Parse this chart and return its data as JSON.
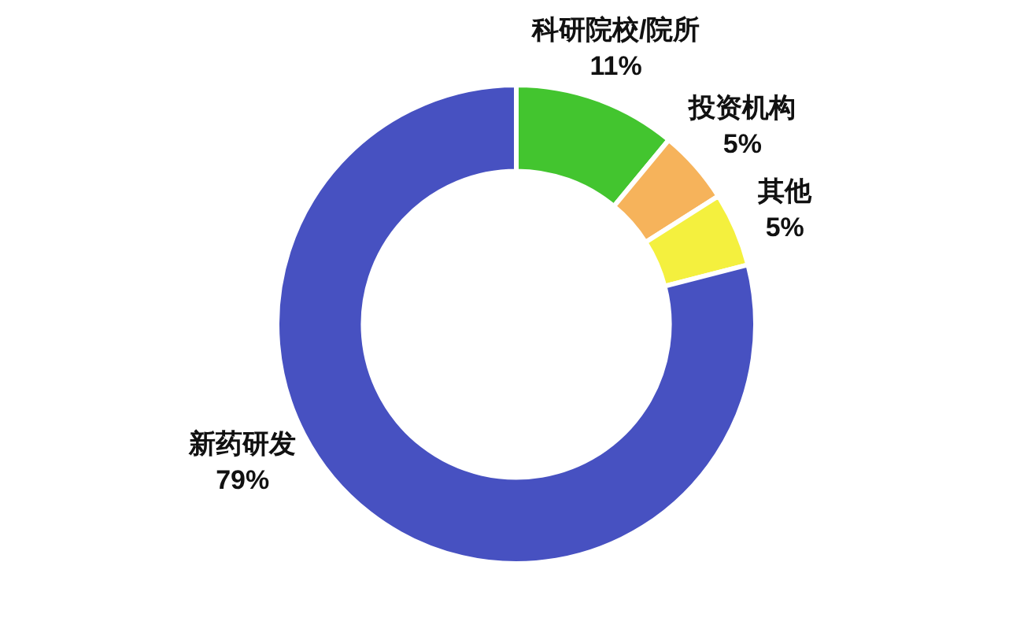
{
  "chart_data": {
    "type": "donut",
    "categories": [
      "科研院校/院所",
      "投资机构",
      "其他",
      "新药研发"
    ],
    "values": [
      11,
      5,
      5,
      79
    ],
    "value_labels": [
      "11%",
      "5%",
      "5%",
      "79%"
    ],
    "colors": [
      "#43c52f",
      "#f6b35b",
      "#f4f03e",
      "#4751c1"
    ]
  }
}
